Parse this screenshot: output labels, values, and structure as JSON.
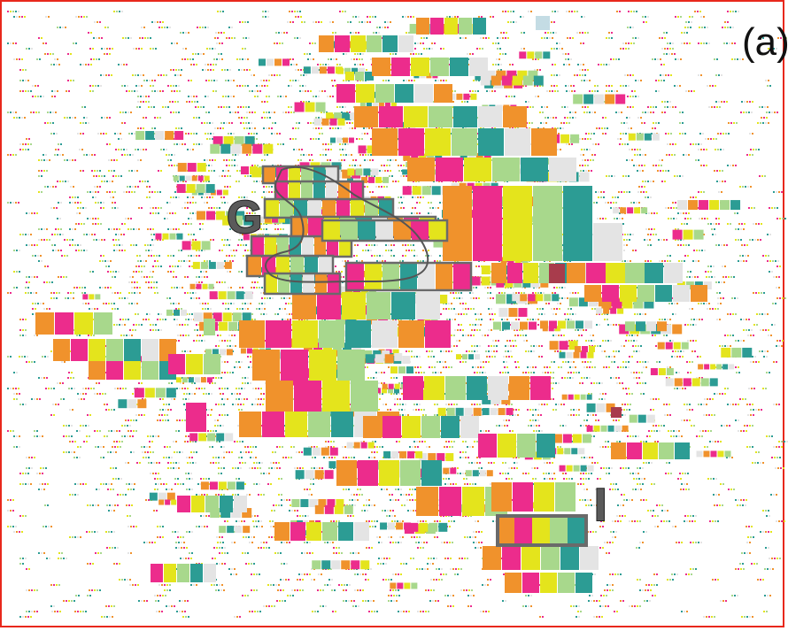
{
  "figure": {
    "panel_label": "(a)",
    "markers": {
      "group_g": "G",
      "group_i": "I"
    },
    "palette": [
      "#f0922c",
      "#ec2c8c",
      "#e4e41c",
      "#a8d88c",
      "#2c9c94",
      "#e4e4e4",
      "#a83c4c",
      "#c4dce4"
    ],
    "frame_color": "#e8281c",
    "highlight_color": "#6a6a6a"
  }
}
